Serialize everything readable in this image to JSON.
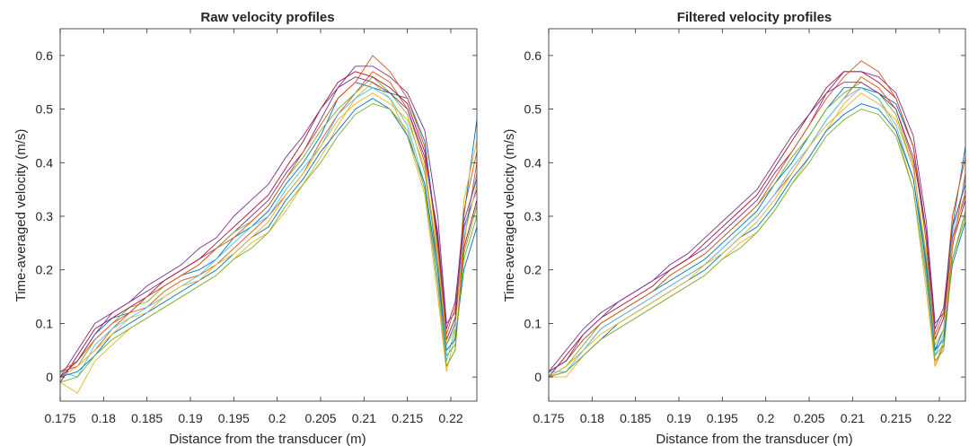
{
  "figure": {
    "series_colors": [
      "#0072BD",
      "#D95319",
      "#EDB120",
      "#7E2F8E",
      "#77AC30",
      "#4DBEEE",
      "#A2142F"
    ]
  },
  "chart_data": [
    {
      "type": "line",
      "title": "Raw velocity profiles",
      "xlabel": "Distance from the transducer (m)",
      "ylabel": "Time-averaged velocity (m/s)",
      "xlim": [
        0.175,
        0.223
      ],
      "ylim": [
        -0.045,
        0.65
      ],
      "xticks": [
        0.175,
        0.18,
        0.185,
        0.19,
        0.195,
        0.2,
        0.205,
        0.21,
        0.215,
        0.22
      ],
      "yticks": [
        0,
        0.1,
        0.2,
        0.3,
        0.4,
        0.5,
        0.6
      ],
      "grid": false,
      "x": [
        0.175,
        0.177,
        0.179,
        0.181,
        0.183,
        0.185,
        0.187,
        0.189,
        0.191,
        0.193,
        0.195,
        0.197,
        0.199,
        0.201,
        0.203,
        0.205,
        0.207,
        0.209,
        0.211,
        0.213,
        0.215,
        0.217,
        0.2185,
        0.2195,
        0.2205,
        0.2215,
        0.223
      ],
      "series": [
        {
          "values": [
            0.0,
            0.03,
            0.08,
            0.11,
            0.12,
            0.15,
            0.17,
            0.19,
            0.2,
            0.22,
            0.26,
            0.28,
            0.31,
            0.36,
            0.4,
            0.45,
            0.52,
            0.55,
            0.54,
            0.53,
            0.52,
            0.44,
            0.25,
            0.06,
            0.1,
            0.3,
            0.48
          ]
        },
        {
          "values": [
            0.01,
            0.02,
            0.05,
            0.09,
            0.12,
            0.13,
            0.16,
            0.18,
            0.19,
            0.21,
            0.24,
            0.27,
            0.3,
            0.34,
            0.38,
            0.44,
            0.49,
            0.53,
            0.57,
            0.55,
            0.5,
            0.4,
            0.2,
            0.02,
            0.05,
            0.25,
            0.4
          ]
        },
        {
          "values": [
            -0.01,
            -0.03,
            0.03,
            0.06,
            0.09,
            0.11,
            0.13,
            0.15,
            0.17,
            0.19,
            0.22,
            0.25,
            0.27,
            0.31,
            0.36,
            0.41,
            0.47,
            0.52,
            0.55,
            0.52,
            0.45,
            0.34,
            0.15,
            0.01,
            0.08,
            0.33,
            0.44
          ]
        },
        {
          "values": [
            0.0,
            0.05,
            0.1,
            0.12,
            0.14,
            0.16,
            0.18,
            0.2,
            0.22,
            0.24,
            0.27,
            0.3,
            0.33,
            0.38,
            0.42,
            0.48,
            0.54,
            0.58,
            0.58,
            0.56,
            0.53,
            0.46,
            0.3,
            0.1,
            0.12,
            0.28,
            0.35
          ]
        },
        {
          "values": [
            0.0,
            0.02,
            0.07,
            0.1,
            0.13,
            0.14,
            0.17,
            0.19,
            0.21,
            0.24,
            0.27,
            0.29,
            0.32,
            0.37,
            0.41,
            0.46,
            0.5,
            0.53,
            0.56,
            0.53,
            0.49,
            0.38,
            0.22,
            0.04,
            0.06,
            0.22,
            0.3
          ]
        },
        {
          "values": [
            0.01,
            0.0,
            0.06,
            0.09,
            0.11,
            0.13,
            0.15,
            0.17,
            0.19,
            0.22,
            0.25,
            0.28,
            0.3,
            0.35,
            0.39,
            0.43,
            0.49,
            0.52,
            0.54,
            0.52,
            0.47,
            0.36,
            0.18,
            0.03,
            0.09,
            0.27,
            0.38
          ]
        },
        {
          "values": [
            -0.01,
            0.04,
            0.09,
            0.11,
            0.13,
            0.15,
            0.18,
            0.2,
            0.22,
            0.25,
            0.28,
            0.31,
            0.34,
            0.39,
            0.44,
            0.5,
            0.55,
            0.57,
            0.56,
            0.54,
            0.51,
            0.42,
            0.26,
            0.07,
            0.11,
            0.24,
            0.33
          ]
        },
        {
          "values": [
            0.0,
            0.01,
            0.04,
            0.08,
            0.1,
            0.12,
            0.14,
            0.16,
            0.18,
            0.2,
            0.23,
            0.26,
            0.28,
            0.33,
            0.37,
            0.42,
            0.46,
            0.5,
            0.52,
            0.5,
            0.45,
            0.36,
            0.2,
            0.05,
            0.07,
            0.2,
            0.28
          ]
        },
        {
          "values": [
            0.01,
            0.03,
            0.07,
            0.1,
            0.12,
            0.15,
            0.17,
            0.19,
            0.21,
            0.24,
            0.26,
            0.29,
            0.32,
            0.37,
            0.42,
            0.47,
            0.52,
            0.55,
            0.6,
            0.57,
            0.52,
            0.43,
            0.24,
            0.08,
            0.13,
            0.31,
            0.42
          ]
        },
        {
          "values": [
            0.0,
            0.02,
            0.05,
            0.08,
            0.11,
            0.12,
            0.15,
            0.17,
            0.18,
            0.21,
            0.23,
            0.26,
            0.29,
            0.34,
            0.38,
            0.43,
            0.48,
            0.51,
            0.53,
            0.51,
            0.48,
            0.39,
            0.23,
            0.06,
            0.09,
            0.26,
            0.36
          ]
        },
        {
          "values": [
            0.0,
            0.03,
            0.08,
            0.12,
            0.14,
            0.17,
            0.19,
            0.21,
            0.24,
            0.26,
            0.3,
            0.33,
            0.36,
            0.41,
            0.45,
            0.5,
            0.54,
            0.56,
            0.55,
            0.53,
            0.5,
            0.41,
            0.27,
            0.09,
            0.14,
            0.29,
            0.37
          ]
        },
        {
          "values": [
            -0.01,
            0.0,
            0.04,
            0.07,
            0.09,
            0.11,
            0.13,
            0.15,
            0.17,
            0.19,
            0.22,
            0.24,
            0.27,
            0.32,
            0.36,
            0.4,
            0.45,
            0.49,
            0.51,
            0.5,
            0.46,
            0.35,
            0.17,
            0.02,
            0.05,
            0.23,
            0.32
          ]
        }
      ]
    },
    {
      "type": "line",
      "title": "Filtered velocity profiles",
      "xlabel": "Distance from the transducer (m)",
      "ylabel": "Time-averaged velocity (m/s)",
      "xlim": [
        0.175,
        0.223
      ],
      "ylim": [
        -0.045,
        0.65
      ],
      "xticks": [
        0.175,
        0.18,
        0.185,
        0.19,
        0.195,
        0.2,
        0.205,
        0.21,
        0.215,
        0.22
      ],
      "yticks": [
        0,
        0.1,
        0.2,
        0.3,
        0.4,
        0.5,
        0.6
      ],
      "grid": false,
      "x": [
        0.175,
        0.177,
        0.179,
        0.181,
        0.183,
        0.185,
        0.187,
        0.189,
        0.191,
        0.193,
        0.195,
        0.197,
        0.199,
        0.201,
        0.203,
        0.205,
        0.207,
        0.209,
        0.211,
        0.213,
        0.215,
        0.217,
        0.2185,
        0.2195,
        0.2205,
        0.2215,
        0.223
      ],
      "series": [
        {
          "values": [
            0.01,
            0.03,
            0.07,
            0.1,
            0.12,
            0.14,
            0.16,
            0.18,
            0.2,
            0.22,
            0.25,
            0.28,
            0.31,
            0.36,
            0.4,
            0.45,
            0.5,
            0.54,
            0.54,
            0.53,
            0.51,
            0.43,
            0.25,
            0.05,
            0.09,
            0.28,
            0.43
          ]
        },
        {
          "values": [
            0.0,
            0.02,
            0.05,
            0.09,
            0.11,
            0.13,
            0.15,
            0.17,
            0.19,
            0.21,
            0.24,
            0.27,
            0.3,
            0.34,
            0.38,
            0.43,
            0.48,
            0.52,
            0.56,
            0.54,
            0.5,
            0.4,
            0.2,
            0.02,
            0.06,
            0.24,
            0.38
          ]
        },
        {
          "values": [
            0.0,
            0.0,
            0.04,
            0.07,
            0.09,
            0.11,
            0.13,
            0.15,
            0.17,
            0.19,
            0.22,
            0.25,
            0.27,
            0.31,
            0.36,
            0.41,
            0.46,
            0.51,
            0.54,
            0.52,
            0.46,
            0.35,
            0.16,
            0.02,
            0.07,
            0.3,
            0.41
          ]
        },
        {
          "values": [
            0.01,
            0.05,
            0.09,
            0.12,
            0.14,
            0.16,
            0.18,
            0.2,
            0.22,
            0.24,
            0.27,
            0.3,
            0.33,
            0.38,
            0.42,
            0.47,
            0.53,
            0.57,
            0.57,
            0.56,
            0.53,
            0.45,
            0.29,
            0.1,
            0.12,
            0.26,
            0.34
          ]
        },
        {
          "values": [
            0.0,
            0.02,
            0.06,
            0.1,
            0.12,
            0.14,
            0.16,
            0.19,
            0.21,
            0.23,
            0.26,
            0.29,
            0.32,
            0.36,
            0.41,
            0.45,
            0.5,
            0.53,
            0.55,
            0.53,
            0.49,
            0.39,
            0.22,
            0.04,
            0.06,
            0.22,
            0.3
          ]
        },
        {
          "values": [
            0.01,
            0.01,
            0.05,
            0.09,
            0.11,
            0.13,
            0.15,
            0.17,
            0.19,
            0.21,
            0.24,
            0.27,
            0.3,
            0.34,
            0.39,
            0.43,
            0.48,
            0.52,
            0.54,
            0.52,
            0.47,
            0.37,
            0.19,
            0.04,
            0.08,
            0.27,
            0.37
          ]
        },
        {
          "values": [
            0.0,
            0.04,
            0.08,
            0.11,
            0.13,
            0.15,
            0.17,
            0.2,
            0.22,
            0.25,
            0.28,
            0.31,
            0.34,
            0.39,
            0.44,
            0.49,
            0.54,
            0.57,
            0.57,
            0.55,
            0.52,
            0.43,
            0.27,
            0.07,
            0.11,
            0.25,
            0.33
          ]
        },
        {
          "values": [
            0.0,
            0.01,
            0.04,
            0.07,
            0.1,
            0.12,
            0.14,
            0.16,
            0.18,
            0.2,
            0.23,
            0.26,
            0.28,
            0.32,
            0.37,
            0.41,
            0.46,
            0.49,
            0.51,
            0.5,
            0.46,
            0.37,
            0.21,
            0.05,
            0.07,
            0.21,
            0.29
          ]
        },
        {
          "values": [
            0.01,
            0.03,
            0.07,
            0.1,
            0.12,
            0.14,
            0.16,
            0.19,
            0.21,
            0.23,
            0.26,
            0.29,
            0.32,
            0.37,
            0.42,
            0.47,
            0.52,
            0.56,
            0.59,
            0.57,
            0.52,
            0.43,
            0.25,
            0.08,
            0.12,
            0.3,
            0.41
          ]
        },
        {
          "values": [
            0.0,
            0.02,
            0.05,
            0.08,
            0.1,
            0.12,
            0.14,
            0.16,
            0.18,
            0.21,
            0.23,
            0.26,
            0.29,
            0.33,
            0.38,
            0.43,
            0.47,
            0.5,
            0.53,
            0.51,
            0.48,
            0.39,
            0.23,
            0.06,
            0.09,
            0.25,
            0.35
          ]
        },
        {
          "values": [
            0.01,
            0.03,
            0.08,
            0.11,
            0.14,
            0.16,
            0.18,
            0.21,
            0.23,
            0.26,
            0.29,
            0.32,
            0.35,
            0.4,
            0.45,
            0.49,
            0.53,
            0.55,
            0.55,
            0.53,
            0.5,
            0.41,
            0.27,
            0.09,
            0.13,
            0.28,
            0.36
          ]
        },
        {
          "values": [
            0.0,
            0.01,
            0.04,
            0.07,
            0.09,
            0.11,
            0.13,
            0.15,
            0.17,
            0.19,
            0.22,
            0.24,
            0.27,
            0.31,
            0.36,
            0.4,
            0.45,
            0.48,
            0.5,
            0.49,
            0.45,
            0.35,
            0.18,
            0.03,
            0.05,
            0.22,
            0.31
          ]
        }
      ]
    }
  ]
}
